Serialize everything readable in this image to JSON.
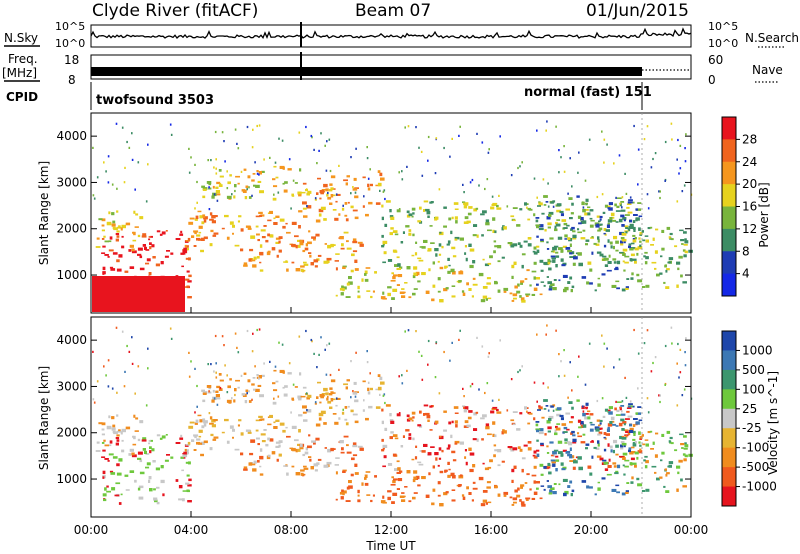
{
  "header": {
    "title": "Clyde River (fitACF)",
    "beam": "Beam 07",
    "date": "01/Jun/2015"
  },
  "noise_panel": {
    "left_label": "N.Sky",
    "right_label": "N.Search",
    "left_ticks": [
      "10^5",
      "10^0"
    ],
    "right_ticks": [
      "10^5",
      "10^0"
    ]
  },
  "freq_panel": {
    "left_label_1": "Freq.",
    "left_label_2": "[MHz]",
    "right_label": "Nave",
    "left_ticks": [
      "18",
      "8"
    ],
    "right_ticks": [
      "60",
      "0"
    ]
  },
  "cpid": {
    "label": "CPID",
    "left_program": "twofsound 3503",
    "right_program": "normal (fast) 151"
  },
  "chart_data": [
    {
      "type": "heatmap",
      "name": "power",
      "ylabel": "Slant Range [km]",
      "yticks": [
        1000,
        2000,
        3000,
        4000
      ],
      "ylim": [
        180,
        4500
      ],
      "xlabel": "Time UT",
      "xticks": [
        "00:00",
        "04:00",
        "08:00",
        "12:00",
        "16:00",
        "20:00",
        "00:00"
      ],
      "colorbar_label": "Power [dB]",
      "colorbar_ticks": [
        "28",
        "24",
        "20",
        "16",
        "12",
        "8",
        "4"
      ],
      "colorbar_colors": [
        "#e8141e",
        "#f0641e",
        "#f5961e",
        "#e6d21e",
        "#78b43c",
        "#3c8c64",
        "#1e3cb4",
        "#1428e6"
      ]
    },
    {
      "type": "heatmap",
      "name": "velocity",
      "ylabel": "Slant Range [km]",
      "yticks": [
        1000,
        2000,
        3000,
        4000
      ],
      "ylim": [
        180,
        4500
      ],
      "xlabel": "Time UT",
      "xticks": [
        "00:00",
        "04:00",
        "08:00",
        "12:00",
        "16:00",
        "20:00",
        "00:00"
      ],
      "colorbar_label": "Velocity [m s^-1]",
      "colorbar_ticks": [
        "1000",
        "500",
        "100",
        "25",
        "-25",
        "-100",
        "-500",
        "-1000"
      ],
      "colorbar_colors": [
        "#1e46aa",
        "#3c78b4",
        "#3c966e",
        "#6ec83c",
        "#c8c8c8",
        "#e6b432",
        "#f08c1e",
        "#f05a1e",
        "#e6141e"
      ]
    }
  ]
}
